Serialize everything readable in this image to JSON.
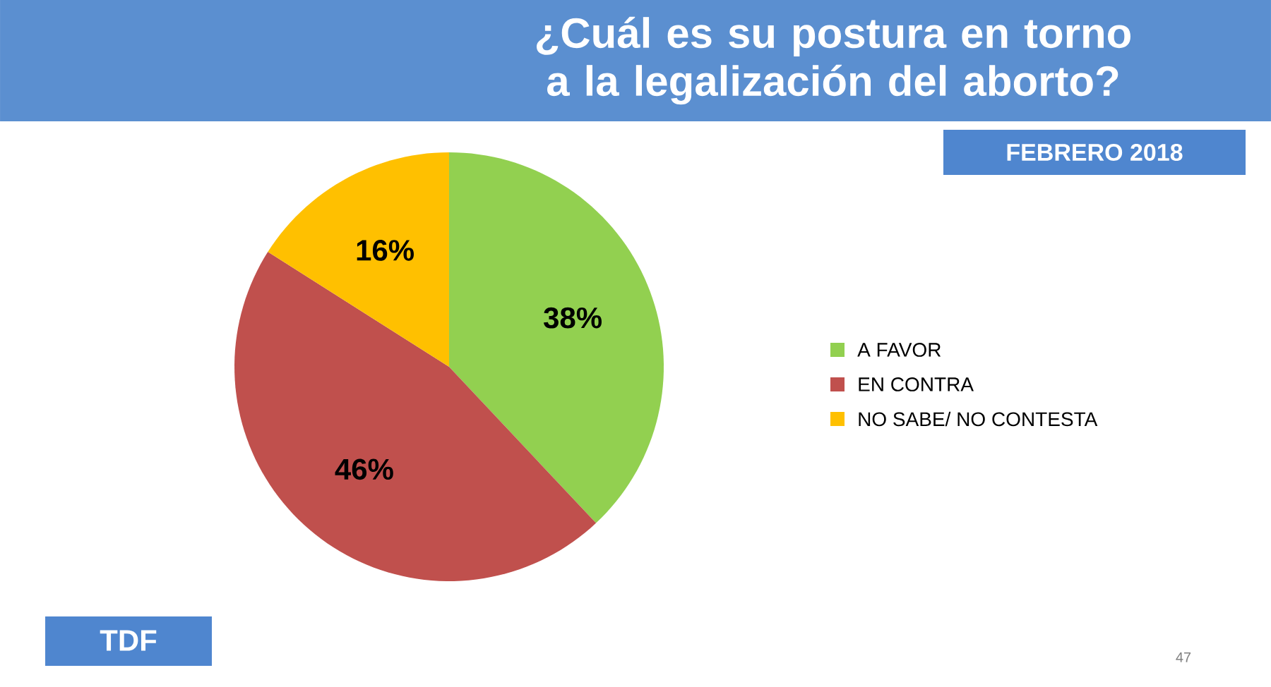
{
  "chart_data": {
    "type": "pie",
    "title": "¿Cuál es su postura en torno a la legalización del aborto?",
    "subtitle": "FEBRERO 2018",
    "categories": [
      "A FAVOR",
      "EN CONTRA",
      "NO SABE/ NO CONTESTA"
    ],
    "values": [
      38,
      46,
      16
    ],
    "colors": [
      "#92d050",
      "#c0504d",
      "#ffc000"
    ],
    "value_labels": [
      "38%",
      "46%",
      "16%"
    ],
    "legend": "right",
    "annotations": [
      "TDF",
      "47"
    ]
  }
}
